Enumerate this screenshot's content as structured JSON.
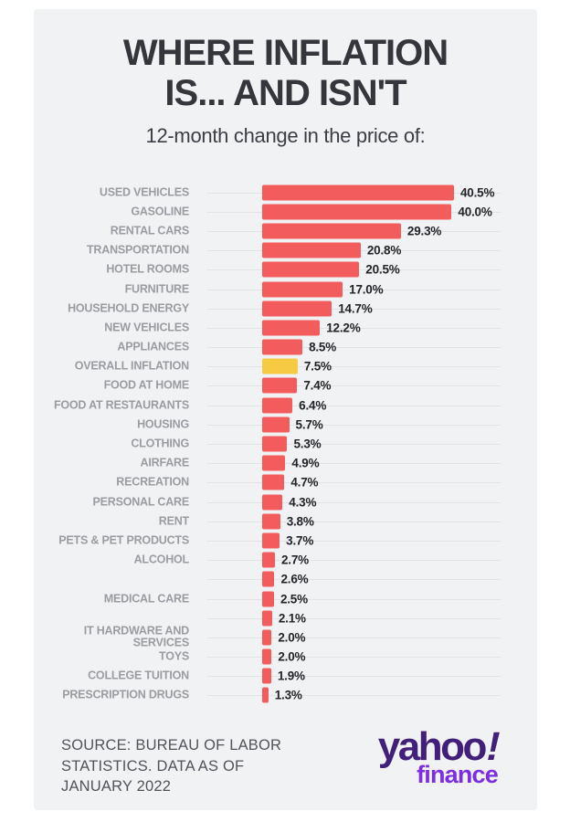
{
  "title": {
    "line1": "WHERE INFLATION",
    "line2": "IS... AND ISN'T"
  },
  "subtitle": "12-month change in the price of:",
  "chart_data": {
    "type": "bar",
    "orientation": "horizontal",
    "title": "WHERE INFLATION IS... AND ISN'T",
    "subtitle": "12-month change in the price of:",
    "unit": "percent",
    "xlim": [
      0,
      42
    ],
    "grid": "faint horizontal row guide lines",
    "bar_color": "#F25C5C",
    "highlight_color": "#F6CB43",
    "highlight_index": 9,
    "categories": [
      "USED VEHICLES",
      "GASOLINE",
      "RENTAL CARS",
      "TRANSPORTATION",
      "HOTEL ROOMS",
      "FURNITURE",
      "HOUSEHOLD ENERGY",
      "NEW VEHICLES",
      "APPLIANCES",
      "OVERALL INFLATION",
      "FOOD AT HOME",
      "FOOD AT RESTAURANTS",
      "HOUSING",
      "CLOTHING",
      "AIRFARE",
      "RECREATION",
      "PERSONAL CARE",
      "RENT",
      "PETS & PET PRODUCTS",
      "ALCOHOL",
      "",
      "MEDICAL CARE",
      "",
      "IT HARDWARE AND SERVICES",
      "TOYS",
      "COLLEGE TUITION",
      "PRESCRIPTION DRUGS"
    ],
    "values": [
      40.5,
      40.0,
      29.3,
      20.8,
      20.5,
      17.0,
      14.7,
      12.2,
      8.5,
      7.5,
      7.4,
      6.4,
      5.7,
      5.3,
      4.9,
      4.7,
      4.3,
      3.8,
      3.7,
      2.7,
      2.6,
      2.5,
      2.1,
      2.0,
      2.0,
      1.9,
      1.3
    ],
    "value_labels": [
      "40.5%",
      "40.0%",
      "29.3%",
      "20.8%",
      "20.5%",
      "17.0%",
      "14.7%",
      "12.2%",
      "8.5%",
      "7.5%",
      "7.4%",
      "6.4%",
      "5.7%",
      "5.3%",
      "4.9%",
      "4.7%",
      "4.3%",
      "3.8%",
      "3.7%",
      "2.7%",
      "2.6%",
      "2.5%",
      "2.1%",
      "2.0%",
      "2.0%",
      "1.9%",
      "1.3%"
    ]
  },
  "footer": {
    "source_lines": [
      "SOURCE: BUREAU OF LABOR",
      "STATISTICS. DATA AS OF",
      "JANUARY 2022"
    ],
    "logo": {
      "yahoo": "yahoo",
      "exclaim": "!",
      "finance": "finance"
    },
    "logo_colors": {
      "yahoo": "#411F7B",
      "finance": "#7C2FE2"
    }
  }
}
